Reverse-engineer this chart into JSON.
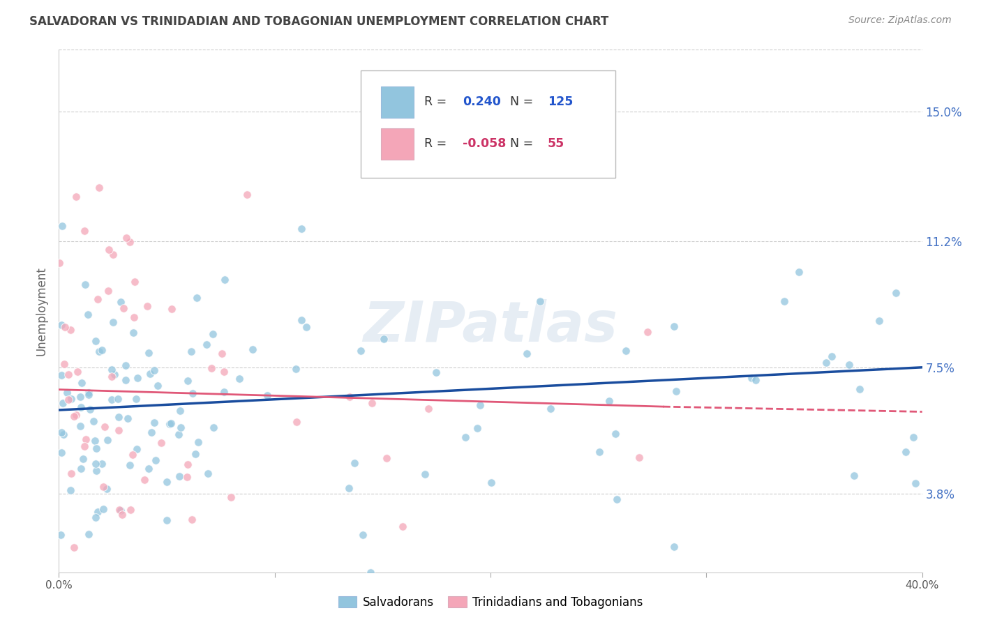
{
  "title": "SALVADORAN VS TRINIDADIAN AND TOBAGONIAN UNEMPLOYMENT CORRELATION CHART",
  "source": "Source: ZipAtlas.com",
  "ylabel": "Unemployment",
  "ytick_labels": [
    "3.8%",
    "7.5%",
    "11.2%",
    "15.0%"
  ],
  "ytick_values": [
    0.038,
    0.075,
    0.112,
    0.15
  ],
  "xmin": 0.0,
  "xmax": 0.4,
  "ymin": 0.015,
  "ymax": 0.168,
  "legend_blue_r": "0.240",
  "legend_blue_n": "125",
  "legend_pink_r": "-0.058",
  "legend_pink_n": "55",
  "legend_label_blue": "Salvadorans",
  "legend_label_pink": "Trinidadians and Tobagonians",
  "blue_color": "#92c5de",
  "pink_color": "#f4a6b8",
  "trend_blue_color": "#1a4d9e",
  "trend_pink_color": "#e05878",
  "background_color": "#ffffff",
  "grid_color": "#cccccc",
  "title_color": "#444444",
  "source_color": "#888888",
  "watermark": "ZIPatlas",
  "blue_trend_x0": 0.0,
  "blue_trend_y0": 0.0625,
  "blue_trend_x1": 0.4,
  "blue_trend_y1": 0.075,
  "pink_trend_x0": 0.0,
  "pink_trend_y0": 0.0685,
  "pink_trend_xsolid": 0.28,
  "pink_trend_ysolid": 0.0635,
  "pink_trend_x1": 0.4,
  "pink_trend_y1": 0.062
}
